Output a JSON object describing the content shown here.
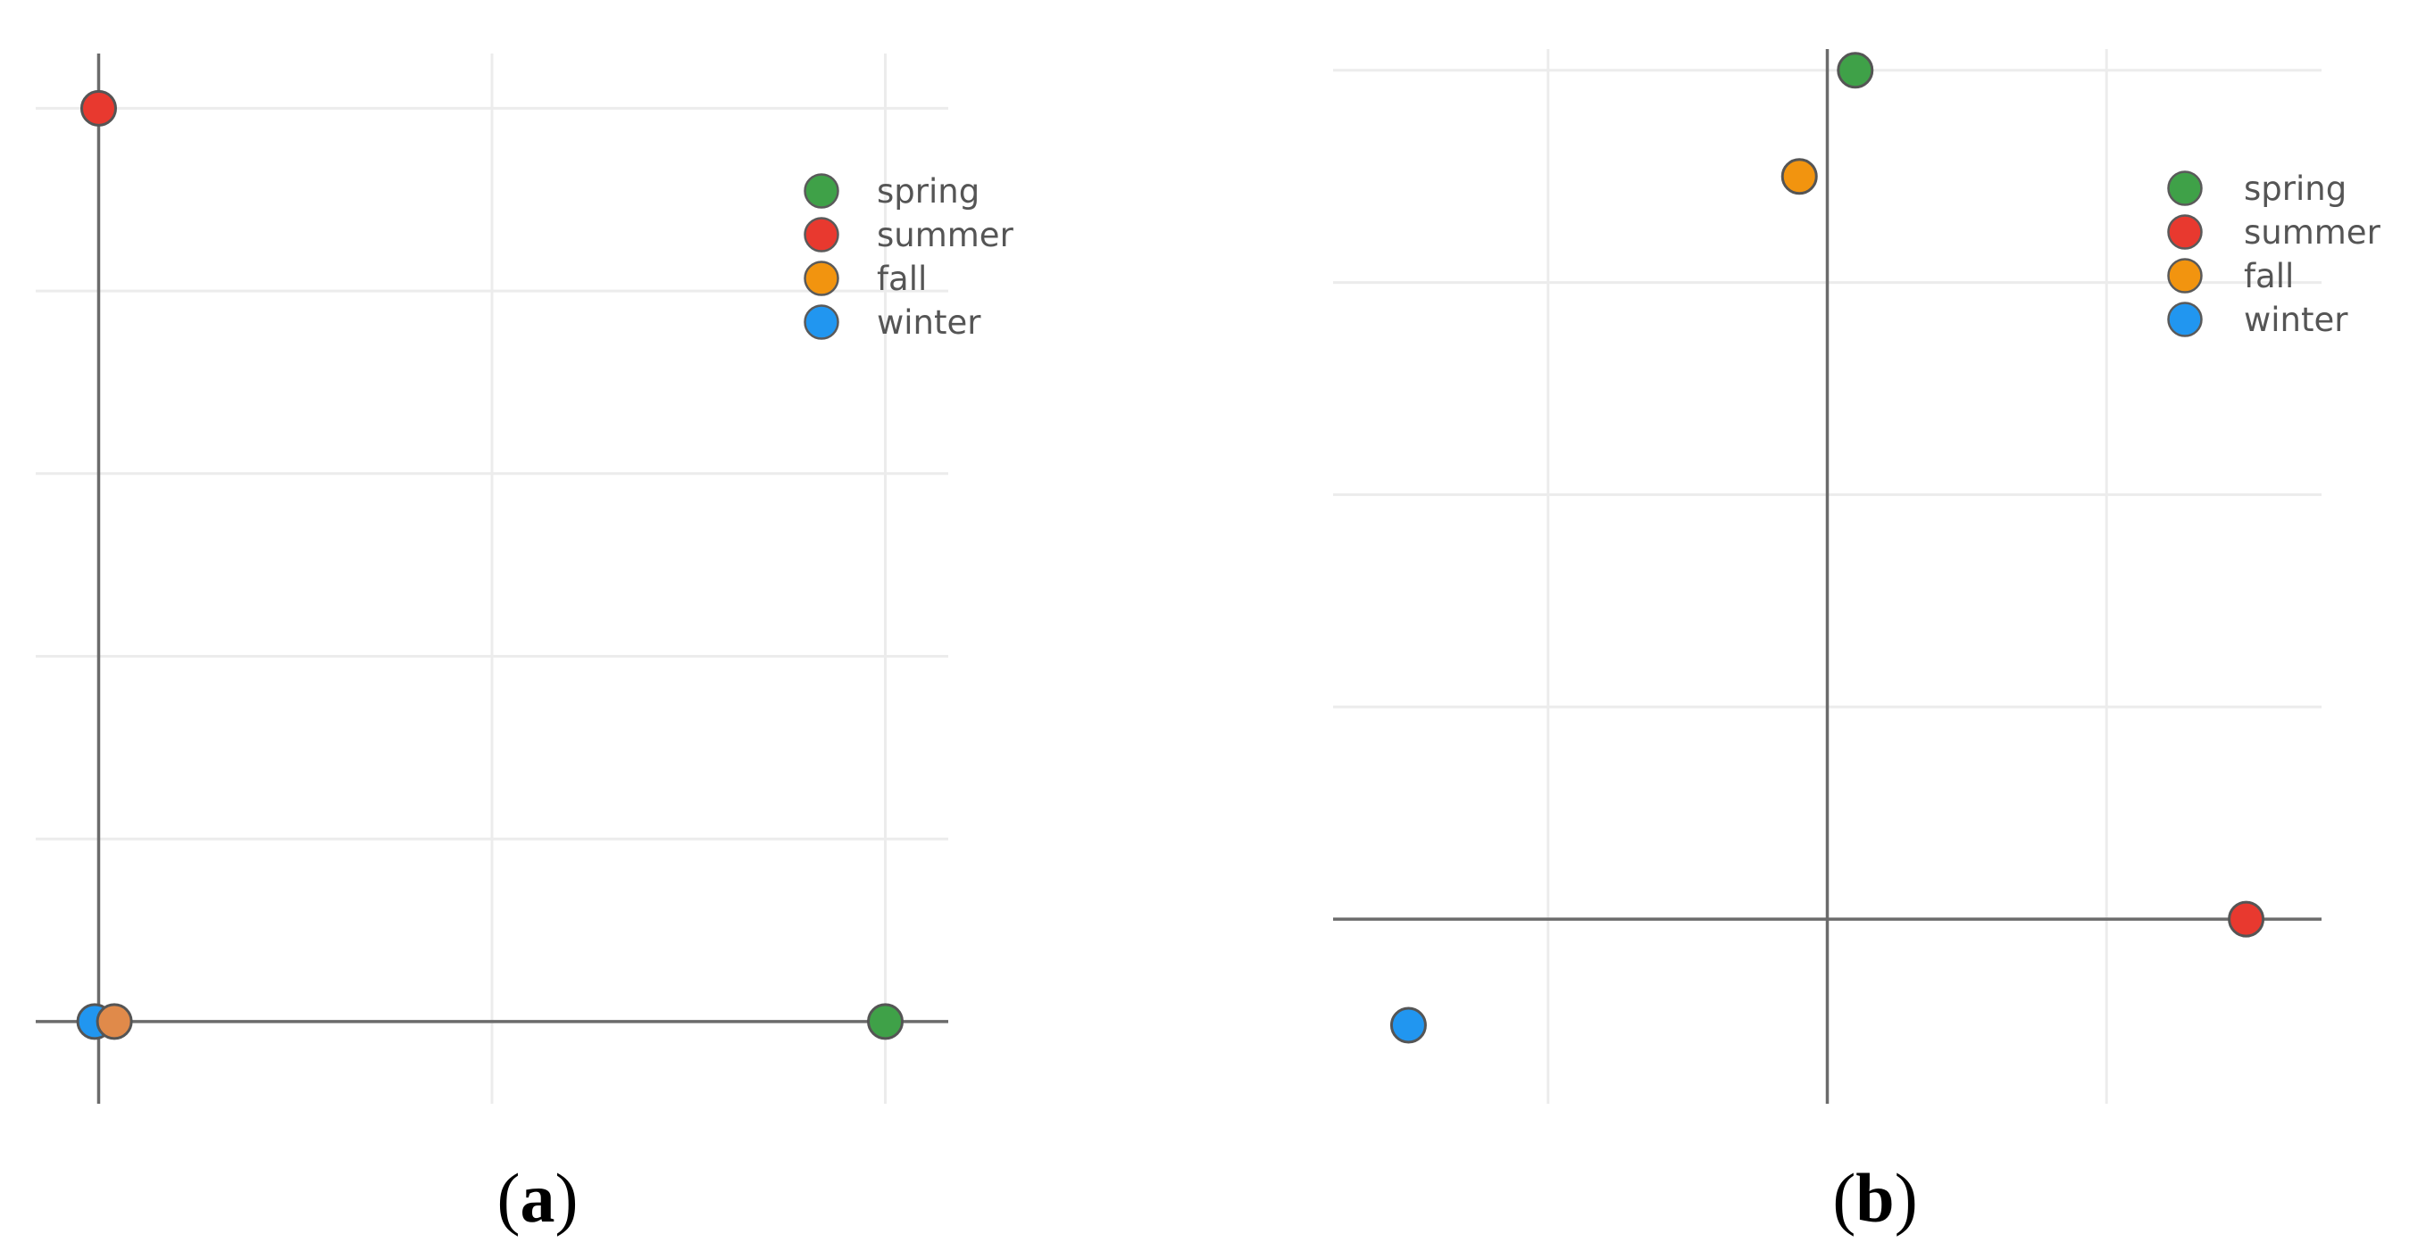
{
  "figure": {
    "panel_a_label_letter": "a",
    "panel_b_label_letter": "b"
  },
  "colors": {
    "spring": "#3fa148",
    "summer": "#e8392f",
    "fall": "#f2940f",
    "winter": "#2196f0",
    "fall_overlap": "#e08a4a"
  },
  "chart_data": [
    {
      "type": "scatter",
      "panel": "a",
      "title": "",
      "xlabel": "",
      "ylabel": "",
      "grid": true,
      "legend_position": "top-right",
      "legend": [
        "spring",
        "summer",
        "fall",
        "winter"
      ],
      "xlim": [
        -0.08,
        1.08
      ],
      "ylim": [
        -0.09,
        1.06
      ],
      "series": [
        {
          "name": "spring",
          "color": "#3fa148",
          "x": [
            1.0
          ],
          "y": [
            0.0
          ]
        },
        {
          "name": "summer",
          "color": "#e8392f",
          "x": [
            0.0
          ],
          "y": [
            1.0
          ]
        },
        {
          "name": "fall",
          "color": "#e08a4a",
          "x": [
            0.02
          ],
          "y": [
            0.0
          ]
        },
        {
          "name": "winter",
          "color": "#2196f0",
          "x": [
            -0.005
          ],
          "y": [
            0.0
          ]
        }
      ]
    },
    {
      "type": "scatter",
      "panel": "b",
      "title": "",
      "xlabel": "",
      "ylabel": "",
      "grid": true,
      "legend_position": "top-right",
      "legend": [
        "spring",
        "summer",
        "fall",
        "winter"
      ],
      "xlim": [
        -1.77,
        1.77
      ],
      "ylim": [
        -0.87,
        4.1
      ],
      "series": [
        {
          "name": "spring",
          "color": "#3fa148",
          "x": [
            0.1
          ],
          "y": [
            4.0
          ]
        },
        {
          "name": "summer",
          "color": "#e8392f",
          "x": [
            1.5
          ],
          "y": [
            0.0
          ]
        },
        {
          "name": "fall",
          "color": "#f2940f",
          "x": [
            -0.1
          ],
          "y": [
            3.5
          ]
        },
        {
          "name": "winter",
          "color": "#2196f0",
          "x": [
            -1.5
          ],
          "y": [
            -0.5
          ]
        }
      ]
    }
  ]
}
